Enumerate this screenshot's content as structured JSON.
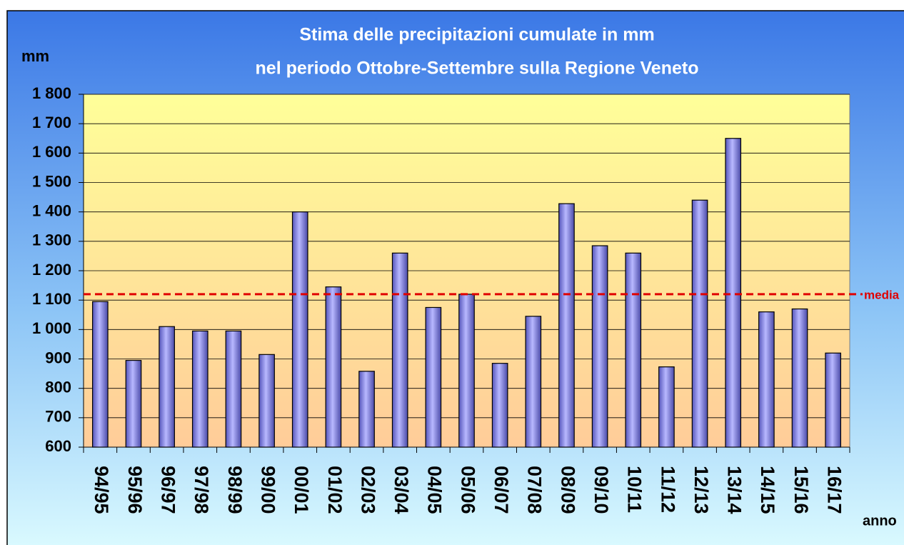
{
  "chart_data": {
    "type": "bar",
    "title": "Stima delle precipitazioni cumulate in mm",
    "subtitle": "nel periodo Ottobre-Settembre sulla  Regione Veneto",
    "y_label": "mm",
    "x_label": "anno",
    "categories": [
      "94/95",
      "95/96",
      "96/97",
      "97/98",
      "98/99",
      "99/00",
      "00/01",
      "01/02",
      "02/03",
      "03/04",
      "04/05",
      "05/06",
      "06/07",
      "07/08",
      "08/09",
      "09/10",
      "10/11",
      "11/12",
      "12/13",
      "13/14",
      "14/15",
      "15/16",
      "16/17"
    ],
    "values": [
      1095,
      895,
      1010,
      995,
      995,
      915,
      1400,
      1145,
      858,
      1260,
      1075,
      1120,
      885,
      1045,
      1428,
      1285,
      1260,
      873,
      1440,
      1650,
      1060,
      1070,
      920
    ],
    "color": "#9999ff",
    "mean": 1120,
    "mean_label": "media",
    "mean_color": "#e00000",
    "ylim": [
      600,
      1800
    ],
    "yticks": [
      600,
      700,
      800,
      900,
      {
        "value": 1000,
        "label": "1 000"
      },
      {
        "value": 1100,
        "label": "1 100"
      },
      {
        "value": 1200,
        "label": "1 200"
      },
      {
        "value": 1300,
        "label": "1 300"
      },
      {
        "value": 1400,
        "label": "1 400"
      },
      {
        "value": 1500,
        "label": "1 500"
      },
      {
        "value": 1600,
        "label": "1 600"
      },
      {
        "value": 1700,
        "label": "1 700"
      },
      {
        "value": 1800,
        "label": "1 800"
      }
    ],
    "grid": true
  }
}
